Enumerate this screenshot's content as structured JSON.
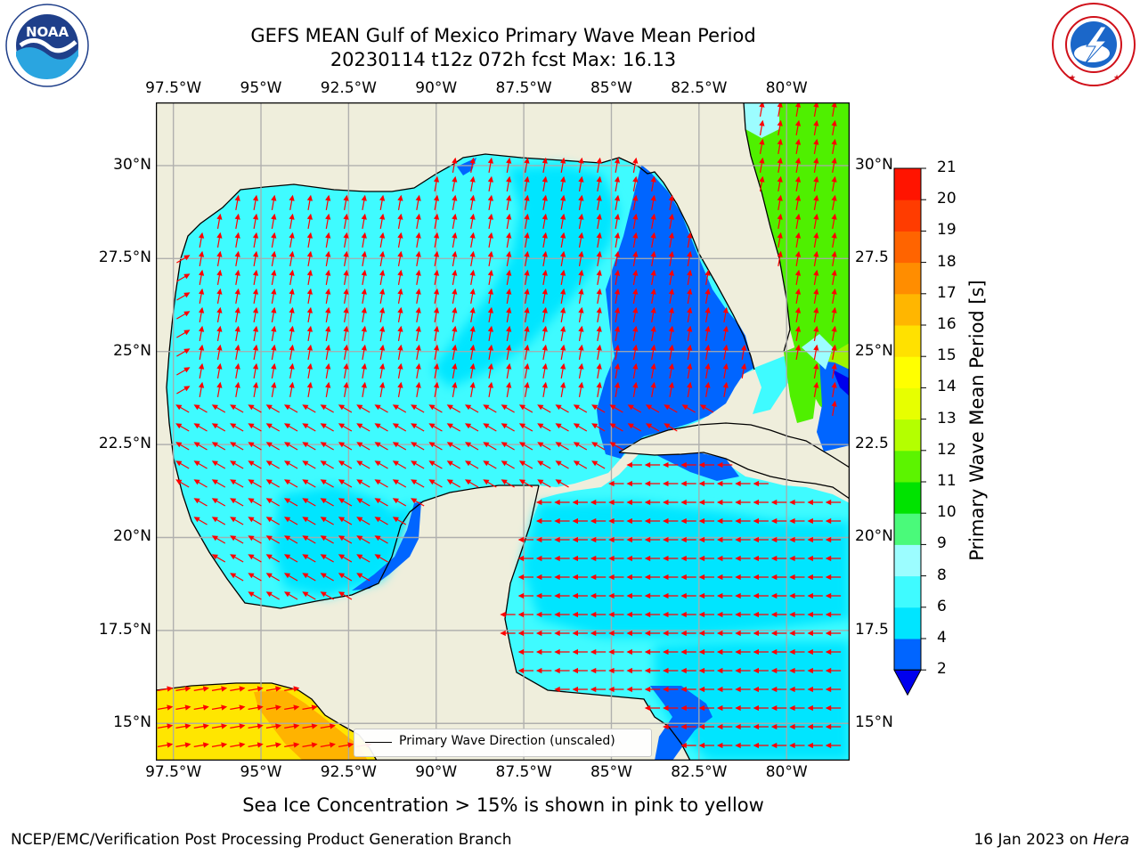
{
  "header": {
    "title_line1": "GEFS MEAN Gulf of Mexico Primary Wave Mean Period",
    "title_line2": "20230114 t12z 072h fcst   Max: 16.13"
  },
  "logos": {
    "noaa_text": "NOAA",
    "noaa_ring": "NATIONAL OCEANIC AND ATMOSPHERIC ADMINISTRATION · U.S. DEPARTMENT OF COMMERCE",
    "nws_ring": "NATIONAL WEATHER SERVICE"
  },
  "map": {
    "lon_labels": [
      "97.5°W",
      "95°W",
      "92.5°W",
      "90°W",
      "87.5°W",
      "85°W",
      "82.5°W",
      "80°W"
    ],
    "lat_labels_left": [
      "30°N",
      "27.5°N",
      "25°N",
      "22.5°N",
      "20°N",
      "17.5°N",
      "15°N"
    ],
    "lat_labels_right": [
      "30°N",
      "27.5",
      "25°N",
      "22.5",
      "20°N",
      "17.5",
      "15°N"
    ],
    "lon_values": [
      -97.5,
      -95,
      -92.5,
      -90,
      -87.5,
      -85,
      -82.5,
      -80
    ],
    "lat_values": [
      30,
      27.5,
      25,
      22.5,
      20,
      17.5,
      15
    ],
    "lon_range": [
      -98,
      -78.2
    ],
    "lat_range": [
      14,
      31.7
    ],
    "grid": true,
    "land_color": "#efeedc",
    "arrow_color": "#ff0000",
    "legend_label": "Primary Wave Direction (unscaled)"
  },
  "colorbar": {
    "title": "Primary Wave Mean Period [s]",
    "ticks": [
      "21",
      "20",
      "19",
      "18",
      "17",
      "16",
      "15",
      "14",
      "13",
      "12",
      "11",
      "10",
      "9",
      "8",
      "6",
      "4",
      "2"
    ],
    "colors_bottom_to_top": [
      "#0065ff",
      "#00e5ff",
      "#3ffbff",
      "#9cfdff",
      "#4afa7a",
      "#00e300",
      "#5cf400",
      "#b4ff00",
      "#e7ff00",
      "#ffff00",
      "#ffe100",
      "#ffb600",
      "#ff8d00",
      "#ff6400",
      "#ff3c00",
      "#ff1400"
    ],
    "extend_color": "#0000ee"
  },
  "footer": {
    "ice_note": "Sea Ice Concentration > 15% is shown in pink to yellow",
    "left": "NCEP/EMC/Verification Post Processing Product Generation Branch",
    "right_date": "16 Jan 2023 on",
    "right_host": "Hera"
  }
}
